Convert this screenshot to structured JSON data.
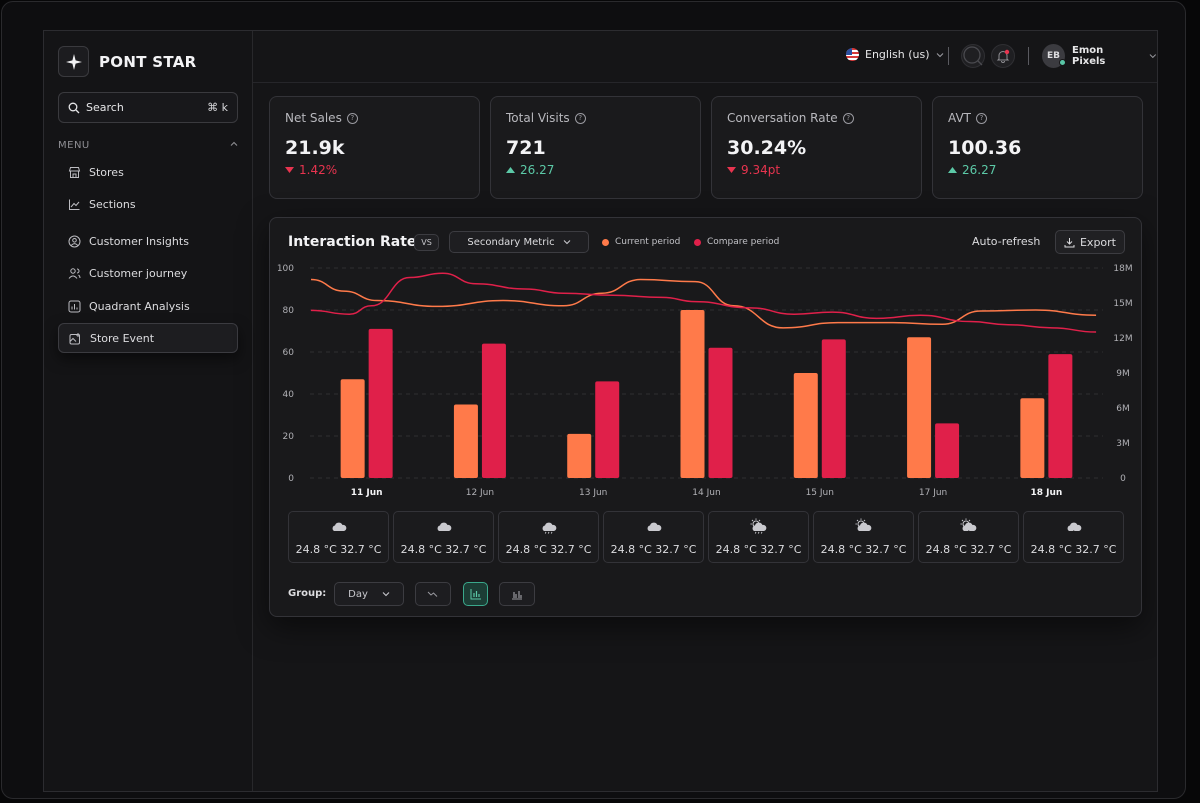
{
  "brand": {
    "name": "PONT STAR"
  },
  "search": {
    "label": "Search",
    "shortcut": "⌘ k"
  },
  "menu": {
    "label": "MENU",
    "items": [
      {
        "label": "Stores",
        "icon": "store-icon"
      },
      {
        "label": "Sections",
        "icon": "line-chart-icon"
      },
      {
        "label": "Customer Insights",
        "icon": "user-circle-icon"
      },
      {
        "label": "Customer journey",
        "icon": "users-icon"
      },
      {
        "label": "Quadrant Analysis",
        "icon": "bar-chart-icon"
      },
      {
        "label": "Store Event",
        "icon": "image-icon",
        "active": true
      }
    ]
  },
  "topbar": {
    "language": "English (us)",
    "user_initials": "EB",
    "user_name": "Emon Pixels"
  },
  "kpis": [
    {
      "label": "Net Sales",
      "value": "21.9k",
      "change": "1.42%",
      "direction": "down"
    },
    {
      "label": "Total Visits",
      "value": "721",
      "change": "26.27",
      "direction": "up"
    },
    {
      "label": "Conversation Rate",
      "value": "30.24%",
      "change": "9.34pt",
      "direction": "down"
    },
    {
      "label": "AVT",
      "value": "100.36",
      "change": "26.27",
      "direction": "up"
    }
  ],
  "panel": {
    "title": "Interaction Rate",
    "vs": "VS",
    "secondary": "Secondary Metric",
    "legend_current": "Current period",
    "legend_compare": "Compare period",
    "autorefresh": "Auto-refresh",
    "export": "Export"
  },
  "colors": {
    "current": "#ff7a4a",
    "compare": "#e0204a",
    "up": "#5cc9a7",
    "down": "#e8344f"
  },
  "chart_data": {
    "type": "bar",
    "categories": [
      "11 Jun",
      "12 Jun",
      "13 Jun",
      "14 Jun",
      "15 Jun",
      "17 Jun",
      "18 Jun"
    ],
    "bold_categories": [
      "11 Jun",
      "18 Jun"
    ],
    "series": [
      {
        "name": "Current period",
        "values": [
          47,
          35,
          21,
          80,
          50,
          67,
          38
        ]
      },
      {
        "name": "Compare period",
        "values": [
          71,
          64,
          46,
          62,
          66,
          26,
          59
        ]
      }
    ],
    "line_series": [
      {
        "name": "Current period",
        "points": [
          [
            0,
            94.5
          ],
          [
            0.3,
            89
          ],
          [
            0.6,
            84.5
          ],
          [
            1.15,
            81.7
          ],
          [
            1.75,
            84.5
          ],
          [
            2.3,
            82
          ],
          [
            2.65,
            88
          ],
          [
            3.0,
            94.5
          ],
          [
            3.5,
            93.5
          ],
          [
            3.85,
            82
          ],
          [
            4.3,
            71.5
          ],
          [
            4.8,
            74
          ],
          [
            5.3,
            74
          ],
          [
            5.75,
            73.2
          ],
          [
            6.1,
            79.5
          ],
          [
            6.6,
            80
          ],
          [
            7.15,
            77.5
          ]
        ]
      },
      {
        "name": "Compare period",
        "points": [
          [
            0,
            79.8
          ],
          [
            0.35,
            78
          ],
          [
            0.55,
            82
          ],
          [
            0.9,
            95.5
          ],
          [
            1.2,
            97.5
          ],
          [
            1.5,
            92.5
          ],
          [
            1.95,
            90
          ],
          [
            2.3,
            88
          ],
          [
            2.75,
            87
          ],
          [
            3.2,
            86
          ],
          [
            3.5,
            84
          ],
          [
            4.0,
            81
          ],
          [
            4.4,
            78
          ],
          [
            4.75,
            79
          ],
          [
            5.15,
            76
          ],
          [
            5.55,
            77.5
          ],
          [
            6.0,
            74.5
          ],
          [
            6.35,
            73
          ],
          [
            6.75,
            71.5
          ],
          [
            7.15,
            69.5
          ]
        ]
      }
    ],
    "ylim": [
      0,
      100
    ],
    "yticks": [
      0,
      20,
      40,
      60,
      80,
      100
    ],
    "y2ticks": [
      "0",
      "3M",
      "6M",
      "9M",
      "12M",
      "15M",
      "18M"
    ],
    "grid": true
  },
  "weather": [
    {
      "icon": "cloud-icon",
      "temp": "24.8 °C 32.7 °C"
    },
    {
      "icon": "cloud-icon",
      "temp": "24.8 °C 32.7 °C"
    },
    {
      "icon": "cloud-rain-icon",
      "temp": "24.8 °C 32.7 °C"
    },
    {
      "icon": "cloud-icon",
      "temp": "24.8 °C 32.7 °C"
    },
    {
      "icon": "sun-rain-icon",
      "temp": "24.8 °C 32.7 °C"
    },
    {
      "icon": "sun-cloud-icon",
      "temp": "24.8 °C 32.7 °C"
    },
    {
      "icon": "sun-storm-icon",
      "temp": "24.8 °C 32.7 °C"
    },
    {
      "icon": "cloud-storm-icon",
      "temp": "24.8 °C 32.7 °C"
    }
  ],
  "group": {
    "label": "Group:",
    "value": "Day"
  }
}
